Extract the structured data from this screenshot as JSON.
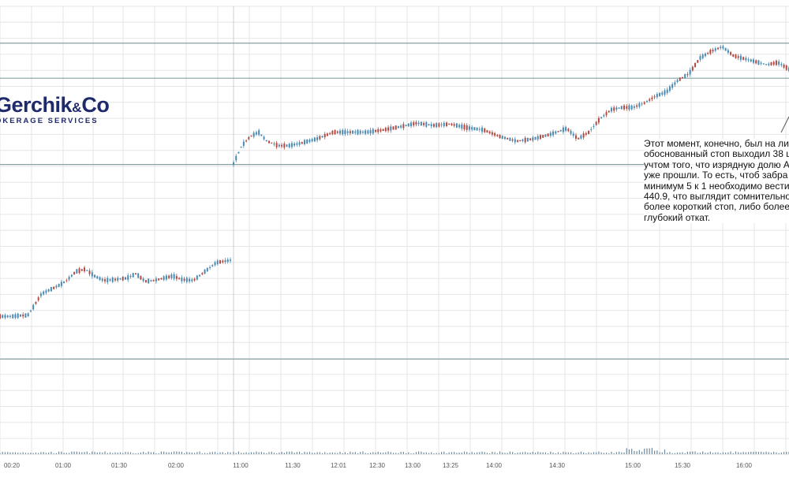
{
  "logo": {
    "name_part1": "Gerchik",
    "name_amp": "&",
    "name_part2": "Co",
    "tagline": "OKERAGE SERVICES"
  },
  "annotation": {
    "text": "Этот момент, конечно, был на ли\nобоснованный стоп выходил 38 ц\nучтом того, что изрядную долю A\nуже прошли. То есть, чтоб забра\nминимум 5 к 1 необходимо вести\n440.9, что выглядит сомнительно\nболее короткий стоп, либо более\nглубокий откат."
  },
  "colors": {
    "up": "#4a8ab0",
    "down": "#b34a42",
    "grid": "#e6e6e6",
    "level": "#8aa0a0",
    "volume": "#6e8a9c",
    "annotation_line": "#555555"
  },
  "chart_data": {
    "type": "candlestick",
    "title": "",
    "x_ticks": [
      "00:20",
      "01:00",
      "01:30",
      "02:00",
      "11:00",
      "11:30",
      "12:01",
      "12:30",
      "13:00",
      "13:25",
      "14:00",
      "14:30",
      "15:00",
      "15:30",
      "16:00"
    ],
    "price_scale": "unlabeled",
    "horizontal_levels_relative": [
      0.082,
      0.16,
      0.352,
      0.785
    ],
    "sessions": [
      {
        "name": "session_1",
        "points": [
          [
            0.0,
            0.69
          ],
          [
            0.05,
            0.69
          ],
          [
            0.09,
            0.688
          ],
          [
            0.12,
            0.688
          ],
          [
            0.14,
            0.673
          ],
          [
            0.18,
            0.64
          ],
          [
            0.22,
            0.63
          ],
          [
            0.26,
            0.62
          ],
          [
            0.29,
            0.61
          ],
          [
            0.33,
            0.59
          ],
          [
            0.37,
            0.585
          ],
          [
            0.41,
            0.6
          ],
          [
            0.45,
            0.61
          ],
          [
            0.5,
            0.608
          ],
          [
            0.55,
            0.605
          ],
          [
            0.59,
            0.595
          ],
          [
            0.63,
            0.612
          ],
          [
            0.67,
            0.61
          ],
          [
            0.71,
            0.605
          ],
          [
            0.75,
            0.6
          ],
          [
            0.79,
            0.608
          ],
          [
            0.84,
            0.61
          ],
          [
            0.89,
            0.59
          ],
          [
            0.94,
            0.57
          ],
          [
            1.0,
            0.565
          ]
        ]
      },
      {
        "name": "session_2",
        "points": [
          [
            0.0,
            0.35
          ],
          [
            0.015,
            0.31
          ],
          [
            0.03,
            0.29
          ],
          [
            0.045,
            0.28
          ],
          [
            0.06,
            0.3
          ],
          [
            0.08,
            0.31
          ],
          [
            0.1,
            0.31
          ],
          [
            0.12,
            0.305
          ],
          [
            0.15,
            0.295
          ],
          [
            0.18,
            0.28
          ],
          [
            0.21,
            0.28
          ],
          [
            0.24,
            0.28
          ],
          [
            0.27,
            0.275
          ],
          [
            0.3,
            0.268
          ],
          [
            0.33,
            0.26
          ],
          [
            0.36,
            0.265
          ],
          [
            0.39,
            0.262
          ],
          [
            0.42,
            0.27
          ],
          [
            0.45,
            0.275
          ],
          [
            0.48,
            0.29
          ],
          [
            0.51,
            0.3
          ],
          [
            0.54,
            0.295
          ],
          [
            0.57,
            0.285
          ],
          [
            0.6,
            0.272
          ],
          [
            0.62,
            0.295
          ],
          [
            0.64,
            0.28
          ],
          [
            0.66,
            0.25
          ],
          [
            0.68,
            0.23
          ],
          [
            0.7,
            0.225
          ],
          [
            0.72,
            0.225
          ],
          [
            0.74,
            0.215
          ],
          [
            0.76,
            0.2
          ],
          [
            0.78,
            0.19
          ],
          [
            0.8,
            0.165
          ],
          [
            0.82,
            0.15
          ],
          [
            0.84,
            0.115
          ],
          [
            0.86,
            0.1
          ],
          [
            0.88,
            0.09
          ],
          [
            0.9,
            0.11
          ],
          [
            0.93,
            0.12
          ],
          [
            0.96,
            0.13
          ],
          [
            0.98,
            0.125
          ],
          [
            1.0,
            0.14
          ]
        ]
      }
    ]
  }
}
